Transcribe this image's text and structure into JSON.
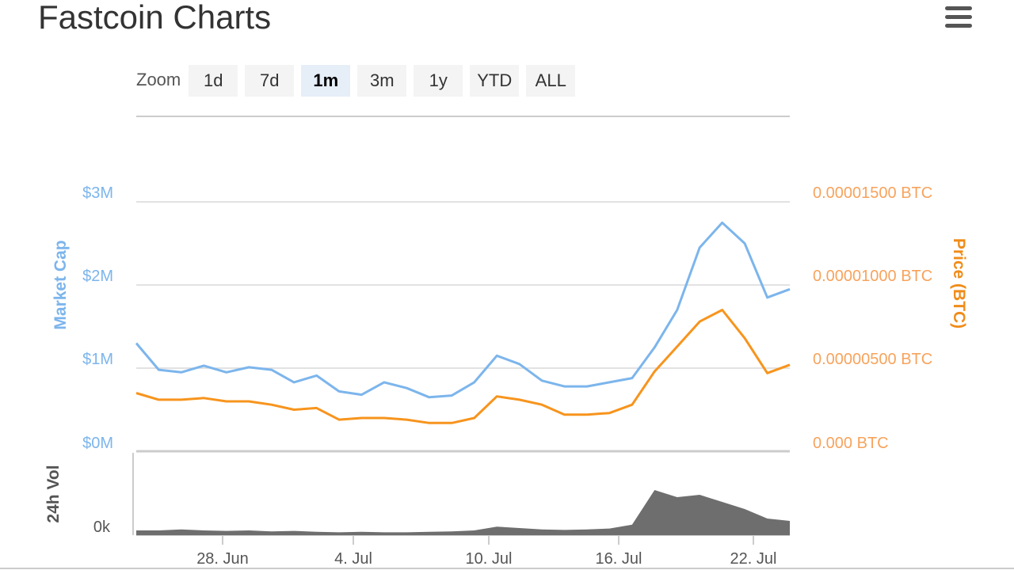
{
  "page": {
    "title": "Fastcoin Charts"
  },
  "menu": {
    "icon": "hamburger-menu-icon"
  },
  "zoom": {
    "label": "Zoom",
    "buttons": [
      "1d",
      "7d",
      "1m",
      "3m",
      "1y",
      "YTD",
      "ALL"
    ],
    "active": "1m"
  },
  "colors": {
    "market_cap": "#7cb5ec",
    "price": "#f7941d",
    "volume": "#6e6e6e",
    "grid": "#d8d8d8"
  },
  "chart_data": {
    "type": "line",
    "x": [
      "2018-06-24",
      "2018-06-25",
      "2018-06-26",
      "2018-06-27",
      "2018-06-28",
      "2018-06-29",
      "2018-06-30",
      "2018-07-01",
      "2018-07-02",
      "2018-07-03",
      "2018-07-04",
      "2018-07-05",
      "2018-07-06",
      "2018-07-07",
      "2018-07-08",
      "2018-07-09",
      "2018-07-10",
      "2018-07-11",
      "2018-07-12",
      "2018-07-13",
      "2018-07-14",
      "2018-07-15",
      "2018-07-16",
      "2018-07-17",
      "2018-07-18",
      "2018-07-19",
      "2018-07-20",
      "2018-07-21",
      "2018-07-22",
      "2018-07-23"
    ],
    "series": [
      {
        "name": "Market Cap",
        "axis": "left",
        "values": [
          1.3,
          0.98,
          0.95,
          1.03,
          0.95,
          1.01,
          0.98,
          0.83,
          0.91,
          0.72,
          0.68,
          0.83,
          0.76,
          0.65,
          0.67,
          0.83,
          1.15,
          1.05,
          0.85,
          0.78,
          0.78,
          0.83,
          0.88,
          1.25,
          1.7,
          2.45,
          2.75,
          2.5,
          1.85,
          1.95
        ]
      },
      {
        "name": "Price (BTC)",
        "axis": "right",
        "values": [
          3.5e-06,
          3.1e-06,
          3.1e-06,
          3.2e-06,
          3e-06,
          3e-06,
          2.8e-06,
          2.5e-06,
          2.6e-06,
          1.9e-06,
          2e-06,
          2e-06,
          1.9e-06,
          1.7e-06,
          1.7e-06,
          2e-06,
          3.3e-06,
          3.1e-06,
          2.8e-06,
          2.2e-06,
          2.2e-06,
          2.3e-06,
          2.8e-06,
          4.8e-06,
          6.3e-06,
          7.8e-06,
          8.5e-06,
          6.8e-06,
          4.7e-06,
          5.2e-06
        ]
      },
      {
        "name": "24h Vol",
        "axis": "volume",
        "values": [
          0.1,
          0.1,
          0.12,
          0.1,
          0.09,
          0.1,
          0.08,
          0.09,
          0.07,
          0.06,
          0.07,
          0.06,
          0.06,
          0.07,
          0.08,
          0.1,
          0.18,
          0.15,
          0.12,
          0.11,
          0.12,
          0.14,
          0.22,
          0.95,
          0.8,
          0.85,
          0.7,
          0.55,
          0.35,
          0.3
        ]
      }
    ],
    "x_ticks": [
      "28. Jun",
      "4. Jul",
      "10. Jul",
      "16. Jul",
      "22. Jul"
    ],
    "left_axis": {
      "title": "Market Cap",
      "ticks": [
        "$3M",
        "$2M",
        "$1M",
        "$0M"
      ],
      "range": [
        0,
        3
      ]
    },
    "right_axis": {
      "title": "Price (BTC)",
      "ticks": [
        "0.00001500 BTC",
        "0.00001000 BTC",
        "0.00000500 BTC",
        "0.000 BTC"
      ],
      "range": [
        0,
        1.5e-05
      ]
    },
    "volume_axis": {
      "title": "24h Vol",
      "ticks": [
        "0k"
      ]
    },
    "grid": true
  }
}
